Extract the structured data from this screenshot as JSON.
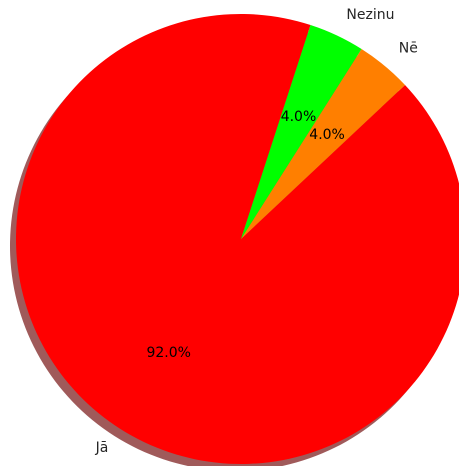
{
  "chart_data": {
    "type": "pie",
    "title": "",
    "slices": [
      {
        "label": "Jā",
        "value": 92.0,
        "pct_label": "92.0%",
        "color": "#ff0000"
      },
      {
        "label": "Nē",
        "value": 4.0,
        "pct_label": "4.0%",
        "color": "#ff7f00"
      },
      {
        "label": "Nezinu",
        "value": 4.0,
        "pct_label": "4.0%",
        "color": "#00ff00"
      }
    ],
    "start_angle_deg": 72.0,
    "direction": "counterclockwise",
    "shadow": true,
    "shadow_color": "#a05a5a",
    "legend": "none"
  }
}
